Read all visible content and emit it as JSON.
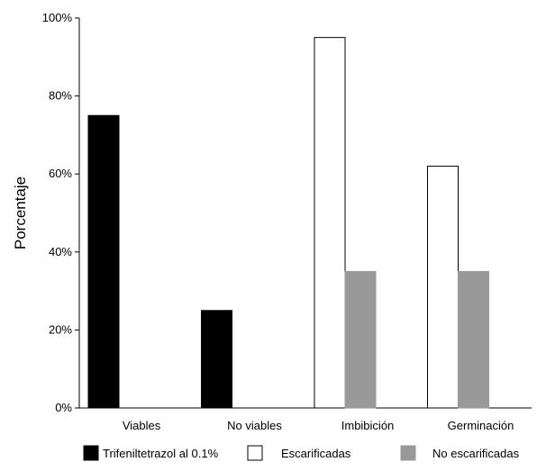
{
  "chart_data": {
    "type": "bar",
    "title": "",
    "xlabel": "",
    "ylabel": "Porcentaje",
    "ylim": [
      0,
      100
    ],
    "y_ticks": [
      "0%",
      "20%",
      "40%",
      "60%",
      "80%",
      "100%"
    ],
    "y_tick_values": [
      0,
      20,
      40,
      60,
      80,
      100
    ],
    "grid": false,
    "legend_position": "bottom",
    "categories": [
      "Viables",
      "No viables",
      "Imbibición",
      "Germinación"
    ],
    "series": [
      {
        "name": "Trifeniltetrazol al 0.1%",
        "color": "#000000",
        "stroke": "#000000",
        "values": [
          75,
          25,
          null,
          null
        ]
      },
      {
        "name": "Escarificadas",
        "color": "#ffffff",
        "stroke": "#000000",
        "values": [
          null,
          null,
          95,
          62
        ]
      },
      {
        "name": "No escarificadas",
        "color": "#999999",
        "stroke": "#999999",
        "values": [
          null,
          null,
          35,
          35
        ]
      }
    ]
  }
}
